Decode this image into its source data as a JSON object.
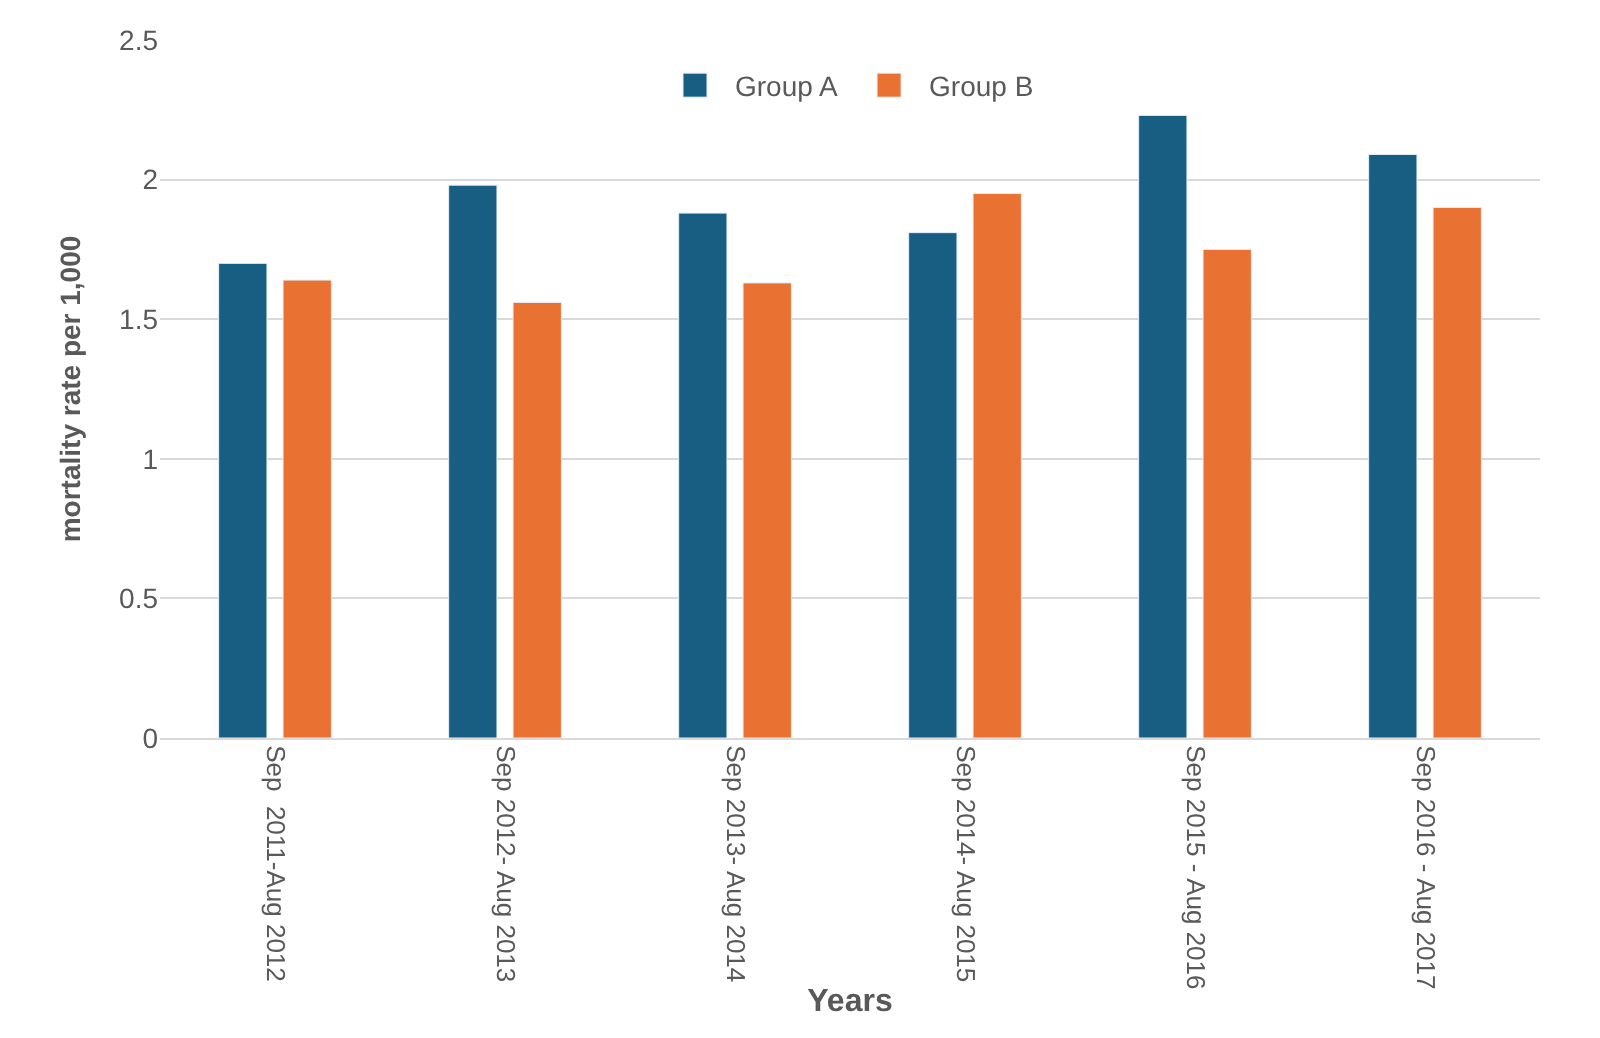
{
  "chart_data": {
    "type": "bar",
    "xlabel": "Years",
    "ylabel": "mortality rate per 1,000",
    "categories": [
      "Sep  2011-Aug 2012",
      "Sep 2012- Aug 2013",
      "Sep 2013- Aug 2014",
      "Sep 2014- Aug 2015",
      "Sep 2015 - Aug 2016",
      "Sep 2016 - Aug 2017"
    ],
    "series": [
      {
        "name": "Group A",
        "color": "#175e82",
        "values": [
          1.7,
          1.98,
          1.88,
          1.81,
          2.23,
          2.09
        ]
      },
      {
        "name": "Group B",
        "color": "#e97132",
        "values": [
          1.64,
          1.56,
          1.63,
          1.95,
          1.75,
          1.9
        ]
      }
    ],
    "ylim": [
      0,
      2.5
    ],
    "yticks": [
      0,
      0.5,
      1,
      1.5,
      2,
      2.5
    ],
    "grid": "y",
    "legend": "top"
  }
}
